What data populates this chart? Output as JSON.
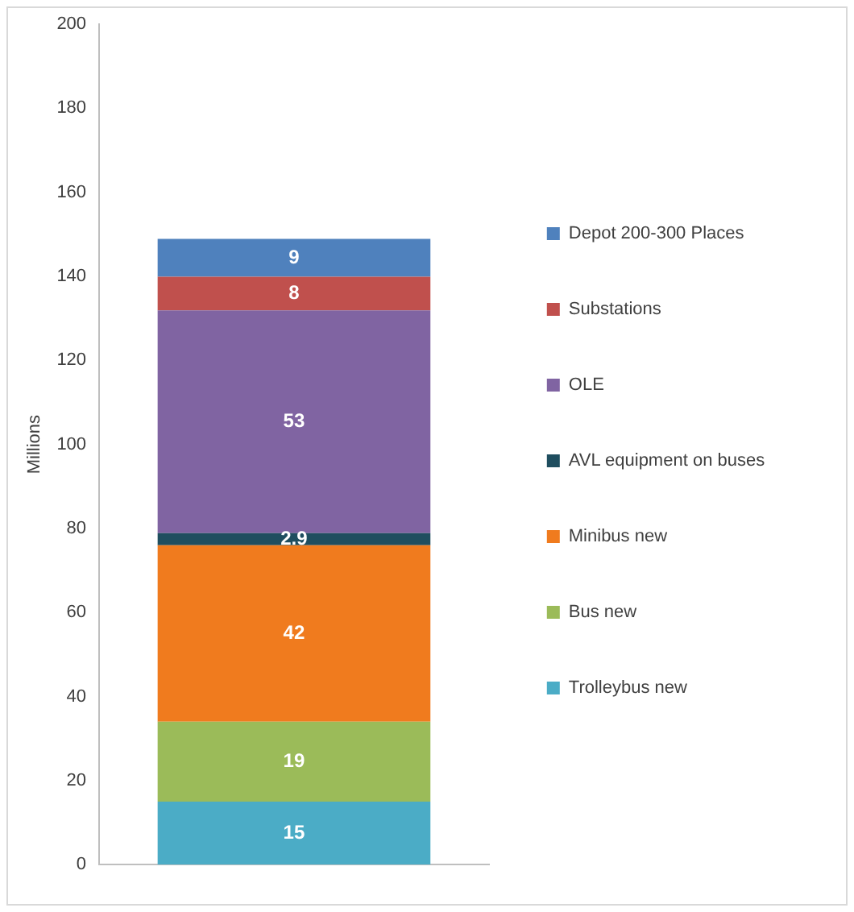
{
  "chart_data": {
    "type": "bar",
    "stacked": true,
    "ylabel": "Millions",
    "categories": [
      null
    ],
    "series": [
      {
        "name": "Trolleybus new",
        "color": "#4bacc6",
        "values": [
          15
        ]
      },
      {
        "name": "Bus new",
        "color": "#9bbb59",
        "values": [
          19
        ]
      },
      {
        "name": "Minibus new",
        "color": "#f07b1e",
        "values": [
          42
        ]
      },
      {
        "name": "AVL equipment on buses",
        "color": "#1f4e5f",
        "values": [
          2.9
        ]
      },
      {
        "name": "OLE",
        "color": "#8064a2",
        "values": [
          53
        ]
      },
      {
        "name": "Substations",
        "color": "#c0504d",
        "values": [
          8
        ]
      },
      {
        "name": "Depot 200-300 Places",
        "color": "#4f81bd",
        "values": [
          9
        ]
      }
    ],
    "ylim": [
      0,
      200
    ],
    "yticks": [
      0,
      20,
      40,
      60,
      80,
      100,
      120,
      140,
      160,
      180,
      200
    ],
    "grid": false,
    "legend": "right",
    "data_labels": true
  }
}
